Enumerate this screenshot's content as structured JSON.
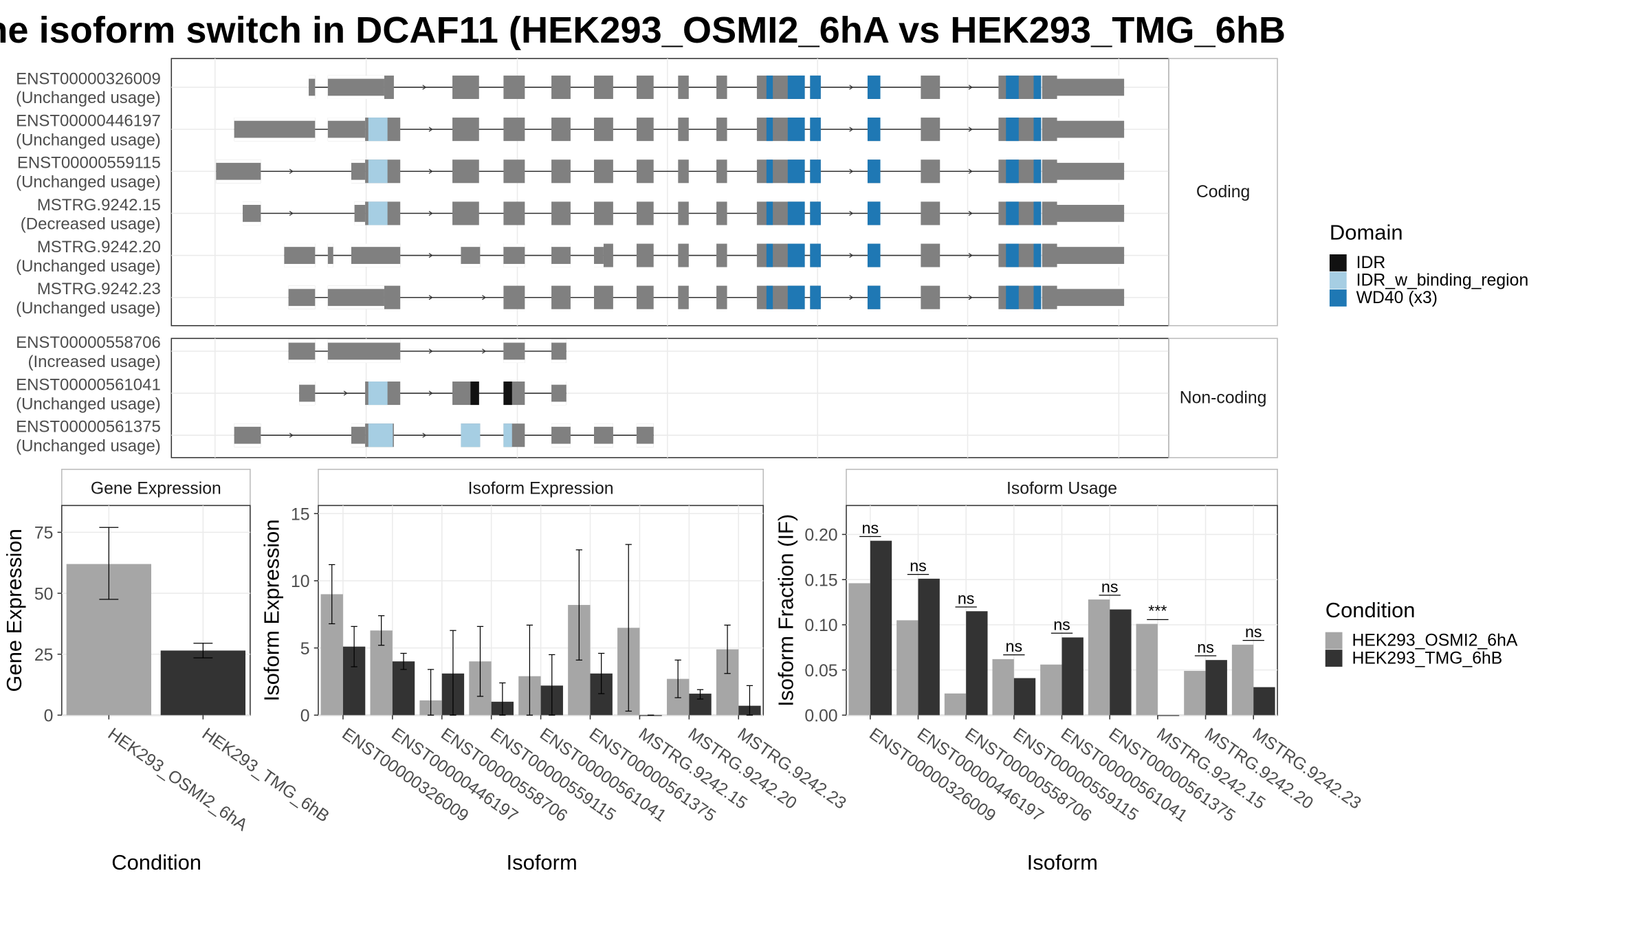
{
  "title": "ne isoform switch in DCAF11 (HEK293_OSMI2_6hA vs HEK293_TMG_6hB",
  "colors": {
    "IDR": "#111111",
    "IDR_w_binding_region": "#a6cee3",
    "WD40 (x3)": "#1f78b4",
    "exon": "#808080",
    "cond1": "#a6a6a6",
    "cond2": "#333333"
  },
  "structure": {
    "group_labels": [
      "Coding",
      "Non-coding"
    ],
    "coding": [
      {
        "id": "ENST00000326009",
        "usage": "(Unchanged usage)",
        "exons": [
          [
            290,
            296
          ],
          [
            308,
            370
          ],
          [
            425,
            450
          ],
          [
            473,
            493
          ],
          [
            518,
            536
          ],
          [
            558,
            576
          ],
          [
            598,
            614
          ],
          [
            637,
            647
          ],
          [
            673,
            683
          ],
          [
            711,
            756
          ],
          [
            761,
            771
          ],
          [
            815,
            827
          ],
          [
            865,
            883
          ],
          [
            938,
            978
          ]
        ],
        "utr": [
          [
            290,
            296
          ],
          [
            308,
            361
          ],
          [
            979,
            1056
          ]
        ],
        "domains": [
          [
            720,
            726,
            "WD40 (x3)"
          ],
          [
            740,
            756,
            "WD40 (x3)"
          ],
          [
            761,
            771,
            "WD40 (x3)"
          ],
          [
            815,
            827,
            "WD40 (x3)"
          ],
          [
            945,
            957,
            "WD40 (x3)"
          ],
          [
            971,
            978,
            "WD40 (x3)"
          ]
        ],
        "thick": [
          [
            979,
            993
          ]
        ]
      },
      {
        "id": "ENST00000446197",
        "usage": "(Unchanged usage)",
        "exons": [
          [
            220,
            296
          ],
          [
            308,
            376
          ],
          [
            425,
            450
          ],
          [
            473,
            493
          ],
          [
            518,
            536
          ],
          [
            558,
            576
          ],
          [
            598,
            614
          ],
          [
            637,
            647
          ],
          [
            673,
            683
          ],
          [
            711,
            756
          ],
          [
            761,
            771
          ],
          [
            815,
            827
          ],
          [
            865,
            883
          ],
          [
            938,
            978
          ]
        ],
        "utr": [
          [
            220,
            296
          ],
          [
            308,
            343
          ],
          [
            979,
            1056
          ]
        ],
        "domains": [
          [
            346,
            364,
            "IDR_w_binding_region"
          ],
          [
            720,
            726,
            "WD40 (x3)"
          ],
          [
            740,
            756,
            "WD40 (x3)"
          ],
          [
            761,
            771,
            "WD40 (x3)"
          ],
          [
            815,
            827,
            "WD40 (x3)"
          ],
          [
            945,
            957,
            "WD40 (x3)"
          ],
          [
            971,
            978,
            "WD40 (x3)"
          ]
        ],
        "thick": [
          [
            979,
            993
          ]
        ]
      },
      {
        "id": "ENST00000559115",
        "usage": "(Unchanged usage)",
        "exons": [
          [
            203,
            245
          ],
          [
            330,
            376
          ],
          [
            425,
            450
          ],
          [
            473,
            493
          ],
          [
            518,
            536
          ],
          [
            558,
            576
          ],
          [
            598,
            614
          ],
          [
            637,
            647
          ],
          [
            673,
            683
          ],
          [
            711,
            756
          ],
          [
            761,
            771
          ],
          [
            815,
            827
          ],
          [
            865,
            883
          ],
          [
            938,
            978
          ]
        ],
        "utr": [
          [
            203,
            245
          ],
          [
            330,
            343
          ],
          [
            979,
            1056
          ]
        ],
        "domains": [
          [
            346,
            364,
            "IDR_w_binding_region"
          ],
          [
            720,
            726,
            "WD40 (x3)"
          ],
          [
            740,
            756,
            "WD40 (x3)"
          ],
          [
            761,
            771,
            "WD40 (x3)"
          ],
          [
            815,
            827,
            "WD40 (x3)"
          ],
          [
            945,
            957,
            "WD40 (x3)"
          ],
          [
            971,
            978,
            "WD40 (x3)"
          ]
        ],
        "thick": [
          [
            979,
            993
          ]
        ]
      },
      {
        "id": "MSTRG.9242.15",
        "usage": "(Decreased usage)",
        "exons": [
          [
            228,
            245
          ],
          [
            333,
            376
          ],
          [
            425,
            450
          ],
          [
            473,
            493
          ],
          [
            518,
            536
          ],
          [
            558,
            576
          ],
          [
            598,
            614
          ],
          [
            637,
            647
          ],
          [
            673,
            683
          ],
          [
            711,
            756
          ],
          [
            761,
            771
          ],
          [
            815,
            827
          ],
          [
            865,
            883
          ],
          [
            938,
            978
          ]
        ],
        "utr": [
          [
            228,
            245
          ],
          [
            333,
            343
          ],
          [
            979,
            1056
          ]
        ],
        "domains": [
          [
            346,
            364,
            "IDR_w_binding_region"
          ],
          [
            720,
            726,
            "WD40 (x3)"
          ],
          [
            740,
            756,
            "WD40 (x3)"
          ],
          [
            761,
            771,
            "WD40 (x3)"
          ],
          [
            815,
            827,
            "WD40 (x3)"
          ],
          [
            945,
            957,
            "WD40 (x3)"
          ],
          [
            971,
            978,
            "WD40 (x3)"
          ]
        ],
        "thick": [
          [
            979,
            993
          ]
        ]
      },
      {
        "id": "MSTRG.9242.20",
        "usage": "(Unchanged usage)",
        "exons": [
          [
            267,
            296
          ],
          [
            308,
            313
          ],
          [
            330,
            376
          ],
          [
            433,
            451
          ],
          [
            473,
            493
          ],
          [
            518,
            536
          ],
          [
            558,
            576
          ],
          [
            598,
            614
          ],
          [
            637,
            647
          ],
          [
            673,
            683
          ],
          [
            711,
            756
          ],
          [
            761,
            771
          ],
          [
            815,
            827
          ],
          [
            865,
            883
          ],
          [
            938,
            978
          ]
        ],
        "utr": [
          [
            267,
            296
          ],
          [
            308,
            313
          ],
          [
            330,
            376
          ],
          [
            433,
            451
          ],
          [
            473,
            493
          ],
          [
            518,
            536
          ],
          [
            558,
            567
          ],
          [
            979,
            1056
          ]
        ],
        "domains": [
          [
            720,
            726,
            "WD40 (x3)"
          ],
          [
            740,
            756,
            "WD40 (x3)"
          ],
          [
            761,
            771,
            "WD40 (x3)"
          ],
          [
            815,
            827,
            "WD40 (x3)"
          ],
          [
            945,
            957,
            "WD40 (x3)"
          ],
          [
            971,
            978,
            "WD40 (x3)"
          ]
        ],
        "thick": [
          [
            979,
            993
          ]
        ]
      },
      {
        "id": "MSTRG.9242.23",
        "usage": "(Unchanged usage)",
        "exons": [
          [
            271,
            296
          ],
          [
            308,
            376
          ],
          [
            473,
            493
          ],
          [
            518,
            536
          ],
          [
            558,
            576
          ],
          [
            598,
            614
          ],
          [
            637,
            647
          ],
          [
            673,
            683
          ],
          [
            711,
            756
          ],
          [
            761,
            771
          ],
          [
            815,
            827
          ],
          [
            865,
            883
          ],
          [
            938,
            978
          ]
        ],
        "utr": [
          [
            271,
            296
          ],
          [
            308,
            361
          ],
          [
            979,
            1056
          ]
        ],
        "domains": [
          [
            720,
            726,
            "WD40 (x3)"
          ],
          [
            740,
            756,
            "WD40 (x3)"
          ],
          [
            761,
            771,
            "WD40 (x3)"
          ],
          [
            815,
            827,
            "WD40 (x3)"
          ],
          [
            945,
            957,
            "WD40 (x3)"
          ],
          [
            971,
            978,
            "WD40 (x3)"
          ]
        ],
        "thick": [
          [
            979,
            993
          ]
        ]
      }
    ],
    "noncoding": [
      {
        "id": "ENST00000558706",
        "usage": "(Increased usage)",
        "exons": [
          [
            271,
            296
          ],
          [
            308,
            376
          ],
          [
            473,
            493
          ],
          [
            518,
            532
          ]
        ],
        "utr": [
          [
            271,
            296
          ],
          [
            308,
            376
          ],
          [
            473,
            493
          ],
          [
            518,
            532
          ]
        ],
        "domains": [],
        "thick": []
      },
      {
        "id": "ENST00000561041",
        "usage": "(Unchanged usage)",
        "exons": [
          [
            281,
            296
          ],
          [
            343,
            376
          ],
          [
            425,
            450
          ],
          [
            473,
            493
          ],
          [
            518,
            532
          ]
        ],
        "utr": [
          [
            281,
            296
          ],
          [
            518,
            532
          ]
        ],
        "domains": [
          [
            346,
            364,
            "IDR_w_binding_region"
          ],
          [
            442,
            450,
            "IDR"
          ],
          [
            473,
            481,
            "IDR"
          ]
        ],
        "thick": []
      },
      {
        "id": "ENST00000561375",
        "usage": "(Unchanged usage)",
        "exons": [
          [
            220,
            245
          ],
          [
            330,
            370
          ],
          [
            433,
            451
          ],
          [
            473,
            493
          ],
          [
            518,
            536
          ],
          [
            558,
            576
          ],
          [
            598,
            614
          ]
        ],
        "utr": [
          [
            220,
            245
          ],
          [
            330,
            343
          ],
          [
            518,
            536
          ],
          [
            558,
            576
          ],
          [
            598,
            614
          ]
        ],
        "domains": [
          [
            346,
            369,
            "IDR_w_binding_region"
          ],
          [
            433,
            451,
            "IDR_w_binding_region"
          ],
          [
            473,
            481,
            "IDR_w_binding_region"
          ]
        ],
        "thick": []
      }
    ]
  },
  "legend_domain": {
    "title": "Domain",
    "items": [
      {
        "label": "IDR",
        "color": "#111111"
      },
      {
        "label": "IDR_w_binding_region",
        "color": "#a6cee3"
      },
      {
        "label": "WD40 (x3)",
        "color": "#1f78b4"
      }
    ]
  },
  "legend_condition": {
    "title": "Condition",
    "items": [
      {
        "label": "HEK293_OSMI2_6hA",
        "color": "#a6a6a6"
      },
      {
        "label": "HEK293_TMG_6hB",
        "color": "#333333"
      }
    ]
  },
  "chart_data": [
    {
      "type": "bar",
      "title": "Gene Expression",
      "xlabel": "Condition",
      "ylabel": "Gene Expression",
      "categories": [
        "HEK293_OSMI2_6hA",
        "HEK293_TMG_6hB"
      ],
      "values": [
        62,
        26.5
      ],
      "err_low": [
        47.5,
        23.5
      ],
      "err_high": [
        77,
        29.5
      ],
      "ylim": [
        0,
        86
      ],
      "yticks": [
        0,
        25,
        50,
        75
      ]
    },
    {
      "type": "bar",
      "title": "Isoform Expression",
      "xlabel": "Isoform",
      "ylabel": "Isoform Expression",
      "categories": [
        "ENST00000326009",
        "ENST00000446197",
        "ENST00000558706",
        "ENST00000559115",
        "ENST00000561041",
        "ENST00000561375",
        "MSTRG.9242.15",
        "MSTRG.9242.20",
        "MSTRG.9242.23"
      ],
      "series": [
        {
          "name": "HEK293_OSMI2_6hA",
          "values": [
            9.0,
            6.3,
            1.1,
            4.0,
            2.9,
            8.2,
            6.5,
            2.7,
            4.9
          ],
          "err_low": [
            6.8,
            5.2,
            0,
            1.4,
            0,
            4.1,
            0.3,
            1.3,
            3.1
          ],
          "err_high": [
            11.2,
            7.4,
            3.4,
            6.6,
            6.7,
            12.3,
            12.7,
            4.1,
            6.7
          ]
        },
        {
          "name": "HEK293_TMG_6hB",
          "values": [
            5.1,
            4.0,
            3.1,
            1.0,
            2.2,
            3.1,
            0,
            1.6,
            0.7
          ],
          "err_low": [
            3.6,
            3.4,
            0,
            0,
            0,
            1.6,
            0,
            1.2,
            0
          ],
          "err_high": [
            6.6,
            4.6,
            6.3,
            2.4,
            4.5,
            4.6,
            0,
            1.9,
            2.2
          ]
        }
      ],
      "ylim": [
        0,
        15.6
      ],
      "yticks": [
        0,
        5,
        10,
        15
      ]
    },
    {
      "type": "bar",
      "title": "Isoform Usage",
      "xlabel": "Isoform",
      "ylabel": "Isoform Fraction (IF)",
      "categories": [
        "ENST00000326009",
        "ENST00000446197",
        "ENST00000558706",
        "ENST00000559115",
        "ENST00000561041",
        "ENST00000561375",
        "MSTRG.9242.15",
        "MSTRG.9242.20",
        "MSTRG.9242.23"
      ],
      "series": [
        {
          "name": "HEK293_OSMI2_6hA",
          "values": [
            0.146,
            0.105,
            0.024,
            0.062,
            0.056,
            0.128,
            0.101,
            0.049,
            0.078
          ]
        },
        {
          "name": "HEK293_TMG_6hB",
          "values": [
            0.193,
            0.151,
            0.115,
            0.041,
            0.086,
            0.117,
            0,
            0.061,
            0.031
          ]
        }
      ],
      "significance": [
        "ns",
        "ns",
        "ns",
        "ns",
        "ns",
        "ns",
        "***",
        "ns",
        "ns"
      ],
      "ylim": [
        0,
        0.232
      ],
      "yticks": [
        "0.00",
        "0.05",
        "0.10",
        "0.15",
        "0.20"
      ]
    }
  ]
}
